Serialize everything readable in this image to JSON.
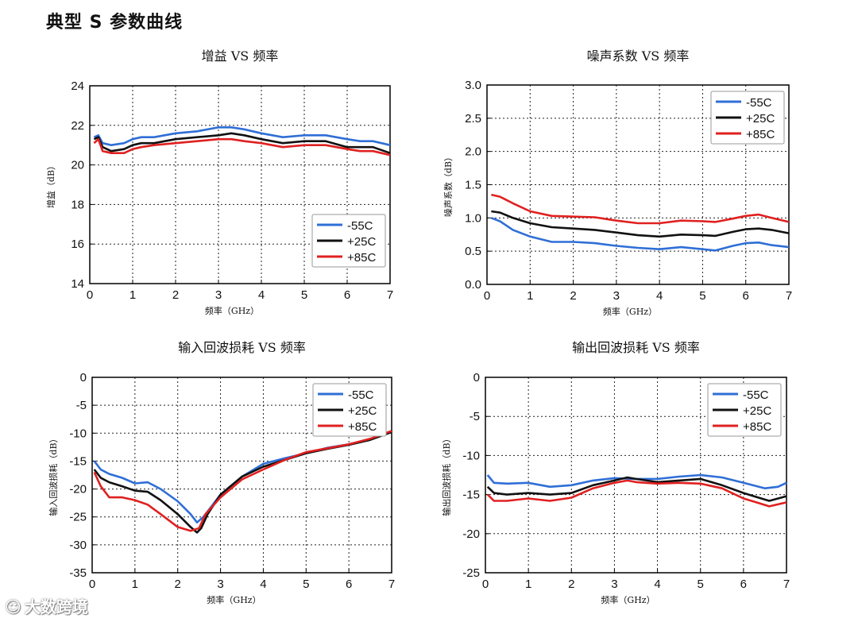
{
  "page_title": "典型 S 参数曲线",
  "watermark": {
    "text": "大数跨境",
    "icon": "brand-logo-icon"
  },
  "colors": {
    "-55C": "#2f6fd6",
    "+25C": "#111111",
    "+85C": "#e02020"
  },
  "chart_data": [
    {
      "type": "line",
      "title": "增益 VS 频率",
      "xlabel": "频率（GHz）",
      "ylabel": "增益（dB）",
      "xlim": [
        0,
        7
      ],
      "ylim": [
        14,
        24
      ],
      "xticks": [
        "0",
        "1",
        "2",
        "3",
        "4",
        "5",
        "6",
        "7"
      ],
      "yticks": [
        "14",
        "16",
        "18",
        "20",
        "22",
        "24"
      ],
      "grid": true,
      "legend_position": "lower-right",
      "series": [
        {
          "name": "-55C",
          "color": "#2f6fd6",
          "x": [
            0.1,
            0.2,
            0.3,
            0.5,
            0.8,
            1.0,
            1.2,
            1.5,
            2.0,
            2.5,
            3.0,
            3.3,
            3.6,
            4.0,
            4.5,
            5.0,
            5.5,
            6.0,
            6.3,
            6.6,
            7.0
          ],
          "y": [
            21.4,
            21.5,
            21.1,
            21.0,
            21.1,
            21.3,
            21.4,
            21.4,
            21.6,
            21.7,
            21.9,
            21.9,
            21.8,
            21.6,
            21.4,
            21.5,
            21.5,
            21.3,
            21.2,
            21.2,
            21.0
          ]
        },
        {
          "name": "+25C",
          "color": "#111111",
          "x": [
            0.1,
            0.2,
            0.3,
            0.5,
            0.8,
            1.0,
            1.2,
            1.5,
            2.0,
            2.5,
            3.0,
            3.3,
            3.6,
            4.0,
            4.5,
            5.0,
            5.5,
            6.0,
            6.3,
            6.6,
            7.0
          ],
          "y": [
            21.3,
            21.4,
            20.9,
            20.7,
            20.8,
            21.0,
            21.1,
            21.1,
            21.3,
            21.4,
            21.5,
            21.6,
            21.5,
            21.3,
            21.1,
            21.2,
            21.2,
            20.9,
            20.9,
            20.9,
            20.6
          ]
        },
        {
          "name": "+85C",
          "color": "#e02020",
          "x": [
            0.1,
            0.2,
            0.3,
            0.5,
            0.8,
            1.0,
            1.2,
            1.5,
            2.0,
            2.5,
            3.0,
            3.3,
            3.6,
            4.0,
            4.5,
            5.0,
            5.5,
            6.0,
            6.3,
            6.6,
            7.0
          ],
          "y": [
            21.1,
            21.3,
            20.7,
            20.6,
            20.6,
            20.8,
            20.9,
            21.0,
            21.1,
            21.2,
            21.3,
            21.3,
            21.2,
            21.1,
            20.9,
            21.0,
            21.0,
            20.8,
            20.7,
            20.7,
            20.5
          ]
        }
      ]
    },
    {
      "type": "line",
      "title": "噪声系数 VS 频率",
      "xlabel": "频率（GHz）",
      "ylabel": "噪声系数（dB）",
      "xlim": [
        0,
        7
      ],
      "ylim": [
        0,
        3
      ],
      "xticks": [
        "0",
        "1",
        "2",
        "3",
        "4",
        "5",
        "6",
        "7"
      ],
      "yticks": [
        "0.0",
        "0.5",
        "1.0",
        "1.5",
        "2.0",
        "2.5",
        "3.0"
      ],
      "grid": true,
      "legend_position": "upper-right",
      "series": [
        {
          "name": "-55C",
          "color": "#2f6fd6",
          "x": [
            0.1,
            0.3,
            0.6,
            1.0,
            1.5,
            2.0,
            2.5,
            3.0,
            3.5,
            4.0,
            4.5,
            5.0,
            5.3,
            5.7,
            6.0,
            6.3,
            6.6,
            7.0
          ],
          "y": [
            1.0,
            0.95,
            0.82,
            0.72,
            0.64,
            0.64,
            0.62,
            0.58,
            0.55,
            0.53,
            0.56,
            0.53,
            0.51,
            0.58,
            0.62,
            0.63,
            0.59,
            0.56
          ]
        },
        {
          "name": "+25C",
          "color": "#111111",
          "x": [
            0.1,
            0.3,
            0.6,
            1.0,
            1.5,
            2.0,
            2.5,
            3.0,
            3.5,
            4.0,
            4.5,
            5.0,
            5.3,
            5.7,
            6.0,
            6.3,
            6.6,
            7.0
          ],
          "y": [
            1.1,
            1.08,
            1.0,
            0.92,
            0.86,
            0.84,
            0.82,
            0.78,
            0.74,
            0.72,
            0.75,
            0.74,
            0.73,
            0.79,
            0.83,
            0.84,
            0.82,
            0.77
          ]
        },
        {
          "name": "+85C",
          "color": "#e02020",
          "x": [
            0.1,
            0.3,
            0.6,
            1.0,
            1.5,
            2.0,
            2.5,
            3.0,
            3.5,
            4.0,
            4.5,
            5.0,
            5.3,
            5.7,
            6.0,
            6.3,
            6.6,
            7.0
          ],
          "y": [
            1.35,
            1.32,
            1.22,
            1.1,
            1.03,
            1.02,
            1.01,
            0.96,
            0.92,
            0.92,
            0.96,
            0.95,
            0.94,
            0.99,
            1.03,
            1.05,
            1.0,
            0.94
          ]
        }
      ]
    },
    {
      "type": "line",
      "title": "输入回波损耗 VS 频率",
      "xlabel": "频率（GHz）",
      "ylabel": "输入回波损耗（dB）",
      "xlim": [
        0,
        7
      ],
      "ylim": [
        -35,
        0
      ],
      "xticks": [
        "0",
        "1",
        "2",
        "3",
        "4",
        "5",
        "6",
        "7"
      ],
      "yticks": [
        "-35",
        "-30",
        "-25",
        "-20",
        "-15",
        "-10",
        "-5",
        "0"
      ],
      "grid": true,
      "legend_position": "upper-right",
      "series": [
        {
          "name": "-55C",
          "color": "#2f6fd6",
          "x": [
            0.05,
            0.2,
            0.4,
            0.7,
            1.0,
            1.3,
            1.6,
            2.0,
            2.3,
            2.45,
            2.6,
            3.0,
            3.5,
            4.0,
            4.5,
            5.0,
            5.5,
            6.0,
            6.5,
            7.0
          ],
          "y": [
            -15.0,
            -16.5,
            -17.3,
            -18.0,
            -19.0,
            -18.8,
            -20.0,
            -22.2,
            -24.5,
            -26.0,
            -25.0,
            -21.0,
            -17.8,
            -15.5,
            -14.5,
            -13.6,
            -12.6,
            -12.0,
            -11.1,
            -9.8
          ]
        },
        {
          "name": "+25C",
          "color": "#111111",
          "x": [
            0.05,
            0.2,
            0.4,
            0.7,
            1.0,
            1.3,
            1.6,
            2.0,
            2.3,
            2.45,
            2.55,
            2.7,
            3.0,
            3.5,
            4.0,
            4.5,
            5.0,
            5.5,
            6.0,
            6.5,
            7.0
          ],
          "y": [
            -16.5,
            -18.0,
            -18.8,
            -19.5,
            -20.3,
            -20.5,
            -22.0,
            -24.5,
            -26.8,
            -27.8,
            -27.0,
            -24.5,
            -21.0,
            -17.8,
            -16.0,
            -14.8,
            -13.6,
            -12.8,
            -12.1,
            -11.2,
            -9.8
          ]
        },
        {
          "name": "+85C",
          "color": "#e02020",
          "x": [
            0.05,
            0.2,
            0.4,
            0.7,
            1.0,
            1.3,
            1.6,
            2.0,
            2.3,
            2.5,
            2.65,
            3.0,
            3.5,
            4.0,
            4.5,
            5.0,
            5.5,
            6.0,
            6.5,
            7.0
          ],
          "y": [
            -17.0,
            -19.5,
            -21.5,
            -21.5,
            -22.0,
            -22.8,
            -24.5,
            -26.8,
            -27.5,
            -27.0,
            -24.5,
            -21.5,
            -18.3,
            -16.5,
            -14.8,
            -13.4,
            -12.7,
            -12.0,
            -11.0,
            -9.6
          ]
        }
      ]
    },
    {
      "type": "line",
      "title": "输出回波损耗 VS 频率",
      "xlabel": "频率（GHz）",
      "ylabel": "输出回波损耗（dB）",
      "xlim": [
        0,
        7
      ],
      "ylim": [
        -25,
        0
      ],
      "xticks": [
        "0",
        "1",
        "2",
        "3",
        "4",
        "5",
        "6",
        "7"
      ],
      "yticks": [
        "-25",
        "-20",
        "-15",
        "-10",
        "-5",
        "0"
      ],
      "grid": true,
      "legend_position": "upper-right",
      "series": [
        {
          "name": "-55C",
          "color": "#2f6fd6",
          "x": [
            0.05,
            0.2,
            0.5,
            1.0,
            1.5,
            2.0,
            2.5,
            3.0,
            3.5,
            4.0,
            4.5,
            5.0,
            5.5,
            6.0,
            6.5,
            6.8,
            7.0
          ],
          "y": [
            -12.5,
            -13.5,
            -13.6,
            -13.5,
            -14.0,
            -13.8,
            -13.2,
            -12.9,
            -13.0,
            -13.0,
            -12.7,
            -12.5,
            -12.8,
            -13.5,
            -14.2,
            -14.0,
            -13.5
          ]
        },
        {
          "name": "+25C",
          "color": "#111111",
          "x": [
            0.05,
            0.2,
            0.5,
            1.0,
            1.5,
            2.0,
            2.5,
            3.0,
            3.3,
            3.5,
            4.0,
            4.5,
            5.0,
            5.5,
            6.0,
            6.3,
            6.6,
            7.0
          ],
          "y": [
            -14.0,
            -14.8,
            -15.0,
            -14.8,
            -15.0,
            -14.8,
            -13.8,
            -13.2,
            -12.8,
            -13.0,
            -13.4,
            -13.2,
            -13.0,
            -13.8,
            -14.8,
            -15.3,
            -15.8,
            -15.2
          ]
        },
        {
          "name": "+85C",
          "color": "#e02020",
          "x": [
            0.05,
            0.2,
            0.5,
            1.0,
            1.5,
            2.0,
            2.5,
            3.0,
            3.3,
            3.5,
            4.0,
            4.5,
            5.0,
            5.5,
            6.0,
            6.3,
            6.6,
            7.0
          ],
          "y": [
            -15.0,
            -15.8,
            -15.8,
            -15.5,
            -15.8,
            -15.4,
            -14.2,
            -13.5,
            -13.2,
            -13.4,
            -13.6,
            -13.5,
            -13.6,
            -14.2,
            -15.5,
            -16.0,
            -16.5,
            -16.0
          ]
        }
      ]
    }
  ]
}
